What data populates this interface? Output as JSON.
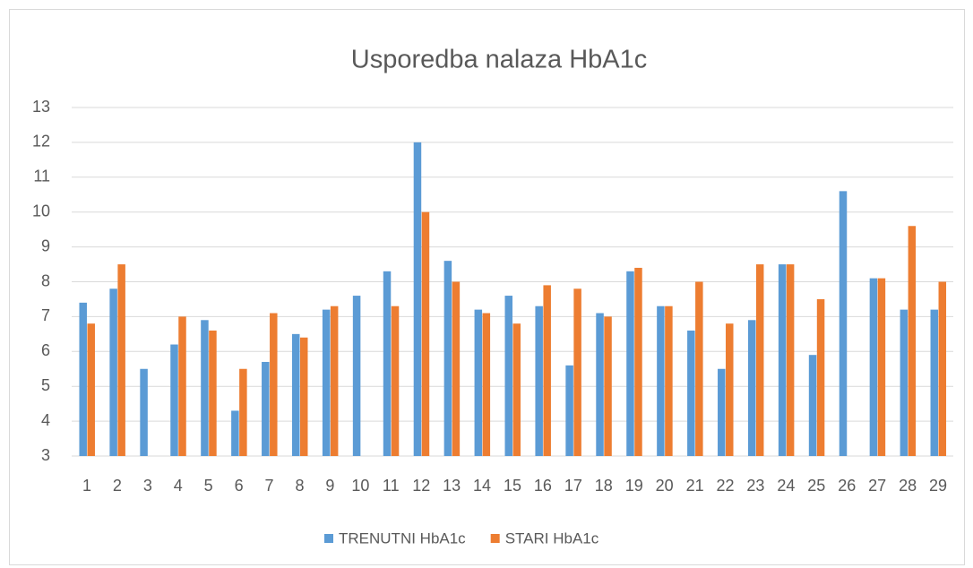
{
  "chart_data": {
    "type": "bar",
    "title": "Usporedba nalaza HbA1c",
    "categories": [
      "1",
      "2",
      "3",
      "4",
      "5",
      "6",
      "7",
      "8",
      "9",
      "10",
      "11",
      "12",
      "13",
      "14",
      "15",
      "16",
      "17",
      "18",
      "19",
      "20",
      "21",
      "22",
      "23",
      "24",
      "25",
      "26",
      "27",
      "28",
      "29"
    ],
    "series": [
      {
        "name": "TRENUTNI HbA1c",
        "color": "#5b9bd5",
        "values": [
          7.4,
          7.8,
          5.5,
          6.2,
          6.9,
          4.3,
          5.7,
          6.5,
          7.2,
          7.6,
          8.3,
          12,
          8.6,
          7.2,
          7.6,
          7.3,
          5.6,
          7.1,
          8.3,
          7.3,
          6.6,
          5.5,
          6.9,
          8.5,
          5.9,
          10.6,
          8.1,
          7.2,
          7.2
        ]
      },
      {
        "name": "STARI HbA1c",
        "color": "#ed7d31",
        "values": [
          6.8,
          8.5,
          null,
          7.0,
          6.6,
          5.5,
          7.1,
          6.4,
          7.3,
          null,
          7.3,
          10,
          8.0,
          7.1,
          6.8,
          7.9,
          7.8,
          7.0,
          8.4,
          7.3,
          8.0,
          6.8,
          8.5,
          8.5,
          7.5,
          null,
          8.1,
          9.6,
          8.0
        ]
      }
    ],
    "ylim": [
      3,
      13
    ],
    "yticks": [
      3,
      4,
      5,
      6,
      7,
      8,
      9,
      10,
      11,
      12,
      13
    ],
    "grid": true,
    "legend": "bottom"
  }
}
